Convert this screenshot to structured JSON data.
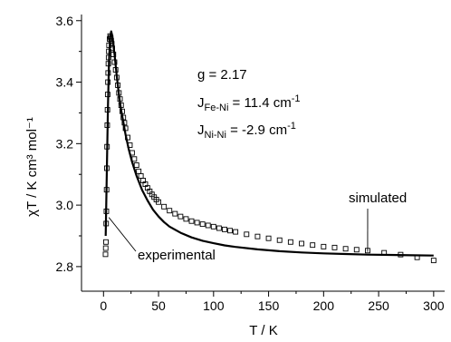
{
  "chart_data": {
    "type": "scatter",
    "xlabel": "T / K",
    "ylabel": "χT / K cm³ mol⁻¹",
    "xlim": [
      -20,
      310
    ],
    "ylim": [
      2.72,
      3.62
    ],
    "xticks": [
      0,
      50,
      100,
      150,
      200,
      250,
      300
    ],
    "yticks": [
      2.8,
      3.0,
      3.2,
      3.4,
      3.6
    ],
    "yticks_labels": [
      "2.8",
      "3.0",
      "3.2",
      "3.4",
      "3.6"
    ],
    "grid": false,
    "legend": "none",
    "annotations": {
      "g": "g = 2.17",
      "jfeni": {
        "prefix": "J",
        "sub": "Fe-Ni",
        "text": " = 11.4 cm",
        "sup": "-1"
      },
      "jnini": {
        "prefix": "J",
        "sub": "Ni-Ni",
        "text": " = -2.9 cm",
        "sup": "-1"
      },
      "simulated": "simulated",
      "experimental": "experimental"
    },
    "series": [
      {
        "name": "experimental",
        "marker": "open-square",
        "x": [
          1.8,
          2.0,
          2.2,
          2.4,
          2.6,
          2.8,
          3.0,
          3.2,
          3.4,
          3.6,
          3.8,
          4.0,
          4.2,
          4.4,
          4.6,
          4.8,
          5.0,
          5.5,
          6.0,
          6.5,
          7.0,
          7.5,
          8.0,
          9.0,
          10,
          11,
          12,
          13,
          14,
          15,
          16,
          17,
          18,
          19,
          20,
          22,
          24,
          26,
          28,
          30,
          32,
          34,
          36,
          38,
          40,
          42,
          44,
          46,
          48,
          50,
          55,
          60,
          65,
          70,
          75,
          80,
          85,
          90,
          95,
          100,
          105,
          110,
          115,
          120,
          130,
          140,
          150,
          160,
          170,
          180,
          190,
          200,
          210,
          220,
          230,
          240,
          255,
          270,
          285,
          300
        ],
        "y": [
          2.84,
          2.86,
          2.88,
          2.94,
          2.98,
          3.05,
          3.12,
          3.19,
          3.26,
          3.31,
          3.36,
          3.4,
          3.43,
          3.46,
          3.48,
          3.5,
          3.52,
          3.54,
          3.55,
          3.545,
          3.535,
          3.525,
          3.51,
          3.49,
          3.465,
          3.44,
          3.415,
          3.39,
          3.365,
          3.345,
          3.325,
          3.305,
          3.285,
          3.268,
          3.25,
          3.22,
          3.195,
          3.17,
          3.15,
          3.13,
          3.11,
          3.095,
          3.08,
          3.068,
          3.056,
          3.045,
          3.035,
          3.026,
          3.018,
          3.01,
          2.995,
          2.982,
          2.972,
          2.963,
          2.955,
          2.948,
          2.943,
          2.938,
          2.934,
          2.93,
          2.925,
          2.921,
          2.917,
          2.913,
          2.905,
          2.898,
          2.892,
          2.886,
          2.88,
          2.875,
          2.87,
          2.865,
          2.862,
          2.858,
          2.855,
          2.852,
          2.845,
          2.839,
          2.83,
          2.82
        ]
      },
      {
        "name": "simulated",
        "line": "solid",
        "x": [
          2,
          3,
          4,
          5,
          6,
          7,
          8,
          9,
          10,
          12,
          14,
          16,
          18,
          20,
          23,
          26,
          30,
          35,
          40,
          45,
          50,
          55,
          60,
          70,
          80,
          90,
          100,
          110,
          120,
          140,
          160,
          180,
          200,
          220,
          240,
          260,
          280,
          300
        ],
        "y": [
          2.9,
          3.1,
          3.32,
          3.47,
          3.545,
          3.565,
          3.55,
          3.52,
          3.49,
          3.42,
          3.36,
          3.31,
          3.27,
          3.23,
          3.18,
          3.14,
          3.095,
          3.05,
          3.015,
          2.985,
          2.963,
          2.945,
          2.93,
          2.91,
          2.895,
          2.884,
          2.876,
          2.869,
          2.864,
          2.856,
          2.85,
          2.846,
          2.843,
          2.841,
          2.839,
          2.838,
          2.837,
          2.836
        ]
      }
    ]
  }
}
